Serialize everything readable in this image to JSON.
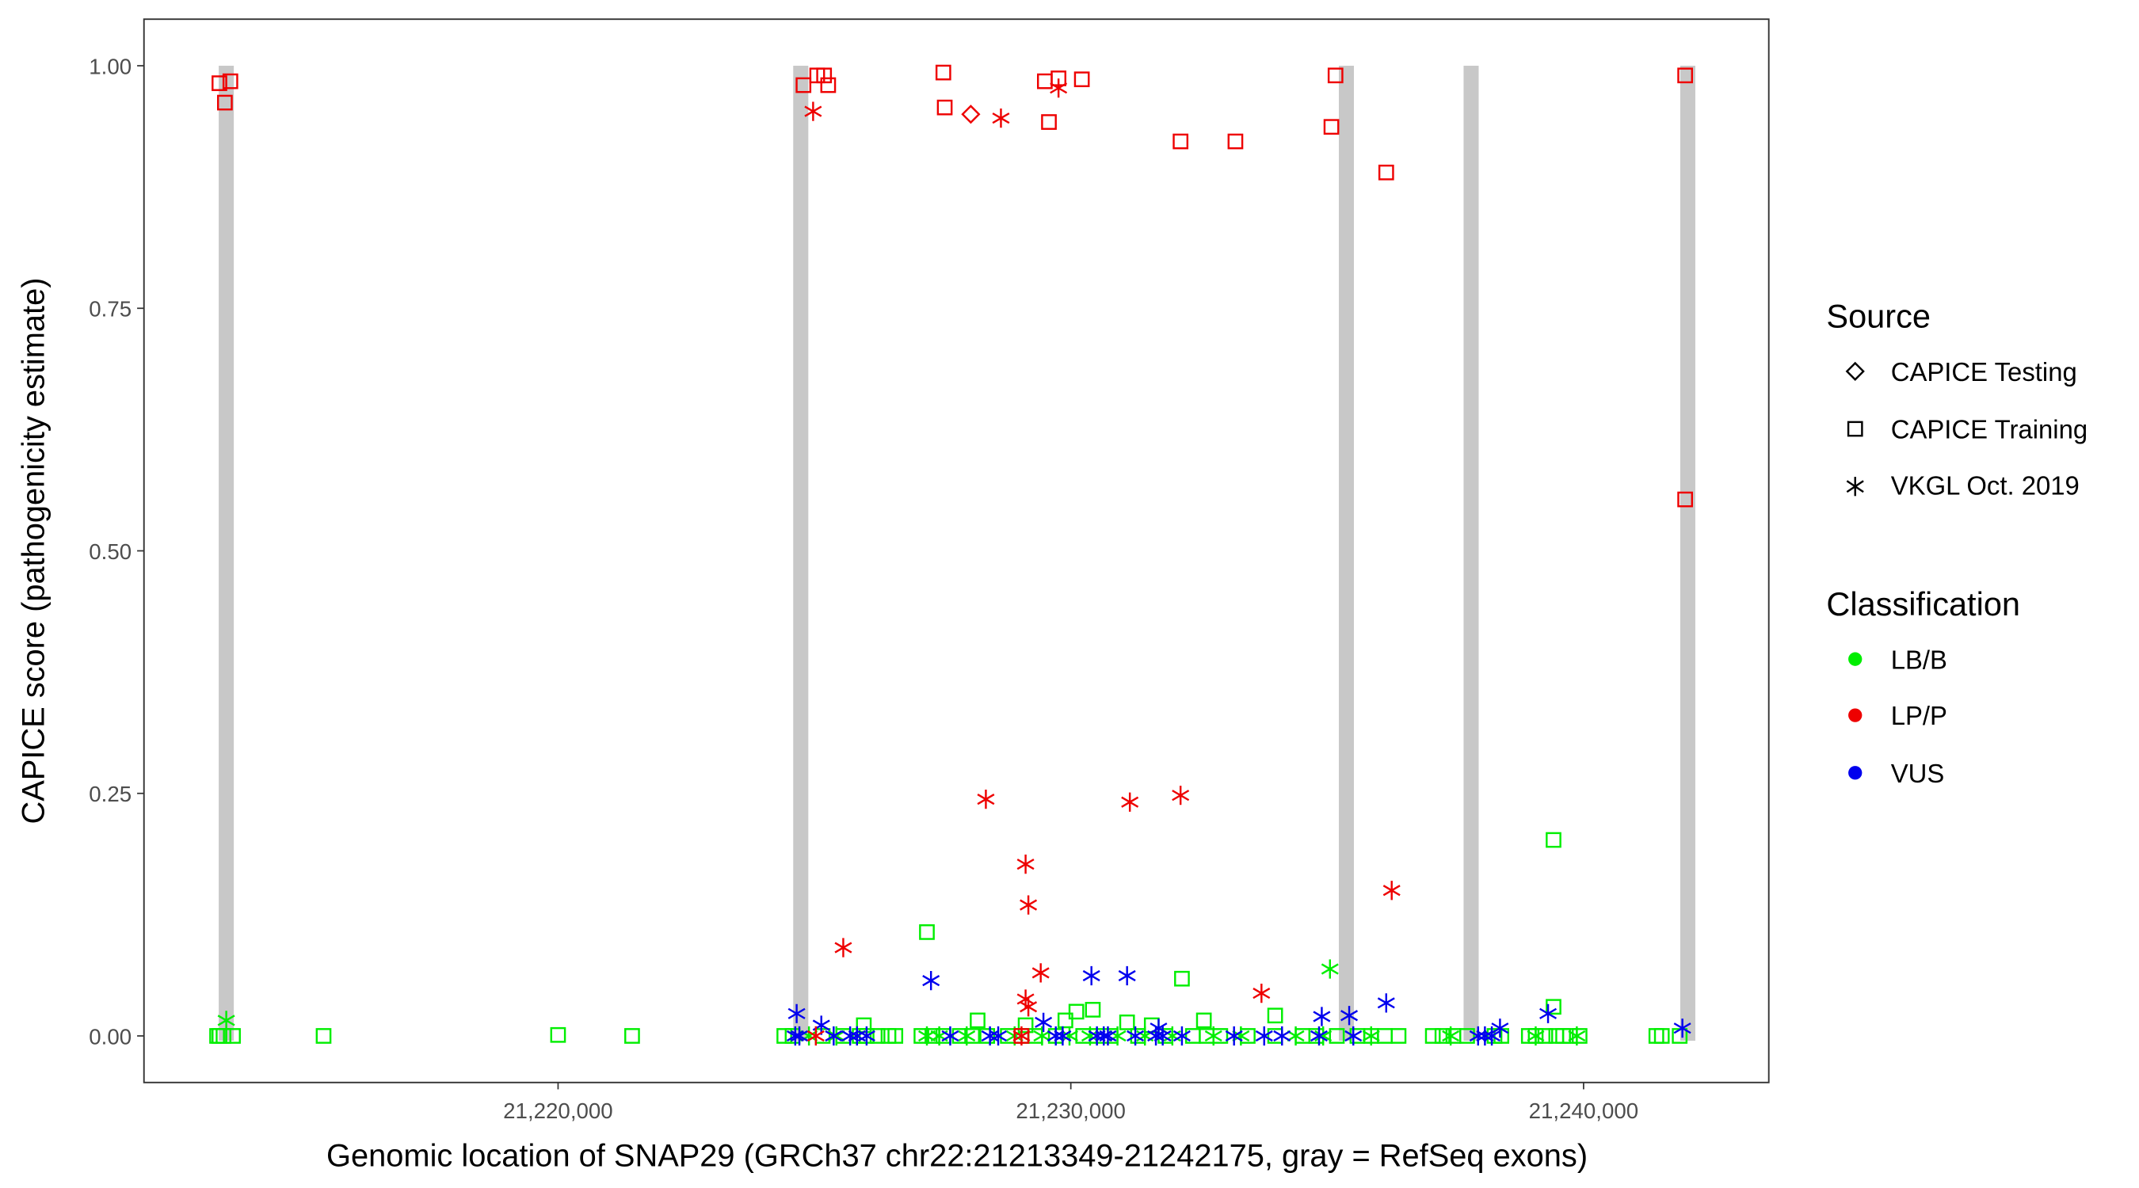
{
  "chart_data": {
    "type": "scatter",
    "title": "",
    "xlabel": "Genomic location of SNAP29 (GRCh37 chr22:21213349-21242175, gray = RefSeq exons)",
    "ylabel": "CAPICE score (pathogenicity estimate)",
    "xlim": [
      21211924,
      21243612
    ],
    "ylim": [
      -0.048,
      1.048
    ],
    "x_ticks": [
      21220000,
      21230000,
      21240000
    ],
    "x_tick_labels": [
      "21,220,000",
      "21,230,000",
      "21,240,000"
    ],
    "y_ticks": [
      0,
      0.25,
      0.5,
      0.75,
      1.0
    ],
    "y_tick_labels": [
      "0.00",
      "0.25",
      "0.50",
      "0.75",
      "1.00"
    ],
    "grid": false,
    "exons": [
      21213529,
      21224733,
      21235374,
      21237807,
      21242032
    ],
    "exon_color": "#c8c8c8",
    "legend_placement": "right",
    "legend": {
      "source_title": "Source",
      "source_items": [
        {
          "label": "CAPICE Testing",
          "shape": "diamond"
        },
        {
          "label": "CAPICE Training",
          "shape": "square"
        },
        {
          "label": "VKGL Oct. 2019",
          "shape": "asterisk"
        }
      ],
      "class_title": "Classification",
      "class_items": [
        {
          "label": "LB/B",
          "color": "#00ee00"
        },
        {
          "label": "LP/P",
          "color": "#ee0000"
        },
        {
          "label": "VUS",
          "color": "#0000ee"
        }
      ]
    },
    "series": [
      {
        "source": "CAPICE Training",
        "class": "LB/B",
        "shape": "square",
        "color": "#00ee00",
        "x": [
          21213350,
          21213395,
          21213475,
          21213660,
          21215427,
          21220000,
          21221444,
          21224412,
          21224573,
          21225161,
          21225562,
          21225883,
          21226017,
          21226230,
          21226444,
          21226578,
          21227086,
          21227300,
          21227514,
          21227835,
          21228075,
          21228370,
          21228771,
          21229038,
          21229306,
          21229707,
          21230241,
          21230509,
          21230776,
          21231311,
          21231846,
          21232381,
          21232648,
          21232915,
          21233450,
          21233985,
          21234520,
          21234787,
          21235188,
          21235589,
          21235857,
          21236124,
          21236392,
          21237060,
          21237247,
          21237461,
          21237729,
          21238263,
          21238397,
          21238932,
          21239066,
          21239253,
          21239467,
          21239601,
          21239735,
          21239922,
          21241419,
          21241526,
          21241874,
          21227193,
          21232167,
          21239414,
          21239414,
          21233985,
          21230429,
          21230108,
          21229894,
          21228182,
          21231097,
          21232595,
          21225963,
          21229118,
          21231578
        ],
        "y": [
          0,
          0,
          0,
          0,
          0,
          0.001,
          0,
          0,
          0,
          0,
          0,
          0,
          0,
          0,
          0,
          0,
          0,
          0,
          0,
          0,
          0,
          0,
          0,
          0,
          0,
          0,
          0,
          0,
          0,
          0,
          0,
          0,
          0,
          0,
          0,
          0,
          0,
          0,
          0,
          0,
          0,
          0,
          0,
          0,
          0,
          0,
          0,
          0,
          0,
          0,
          0,
          0,
          0,
          0,
          0,
          0,
          0,
          0,
          0,
          0.107,
          0.059,
          0.202,
          0.03,
          0.021,
          0.027,
          0.025,
          0.016,
          0.016,
          0.014,
          0.016,
          0.011,
          0.011,
          0.011
        ]
      },
      {
        "source": "VKGL Oct. 2019",
        "class": "LB/B",
        "shape": "asterisk",
        "color": "#00ee00",
        "x": [
          21213529,
          21235054,
          21224893,
          21225428,
          21227193,
          21227434,
          21227969,
          21228904,
          21229439,
          21229974,
          21230375,
          21230910,
          21231445,
          21231980,
          21232782,
          21233317,
          21234386,
          21234921,
          21235857,
          21237408,
          21239066,
          21239868
        ],
        "y": [
          0.016,
          0.069,
          0,
          0,
          0,
          0,
          0,
          0,
          0,
          0,
          0,
          0,
          0,
          0,
          0,
          0,
          0,
          0,
          0,
          0,
          0,
          0
        ]
      },
      {
        "source": "VKGL Oct. 2019",
        "class": "VUS",
        "shape": "asterisk",
        "color": "#0000ee",
        "x": [
          21227273,
          21230402,
          21231097,
          21236151,
          21239307,
          21224653,
          21225134,
          21234894,
          21235429,
          21241927,
          21229466,
          21238370,
          21231712,
          21224626,
          21224706,
          21225375,
          21225696,
          21225830,
          21226017,
          21227648,
          21228423,
          21228584,
          21229707,
          21229841,
          21230509,
          21230642,
          21230723,
          21231258,
          21231659,
          21231792,
          21232167,
          21233183,
          21233771,
          21234119,
          21234841,
          21235509,
          21237943,
          21238076,
          21238210
        ],
        "y": [
          0.057,
          0.062,
          0.062,
          0.034,
          0.023,
          0.023,
          0.011,
          0.02,
          0.021,
          0.008,
          0.014,
          0.008,
          0.008,
          0,
          0,
          0,
          0,
          0,
          0,
          0,
          0,
          0,
          0,
          0,
          0,
          0,
          0,
          0,
          0,
          0,
          0,
          0,
          0,
          0,
          0,
          0,
          0,
          0,
          0
        ]
      },
      {
        "source": "VKGL Oct. 2019",
        "class": "LP/P",
        "shape": "asterisk",
        "color": "#ee0000",
        "x": [
          21224974,
          21228637,
          21229760,
          21228343,
          21231151,
          21232140,
          21229118,
          21229172,
          21225562,
          21229413,
          21229118,
          21229172,
          21233718,
          21236258,
          21229038,
          21225027
        ],
        "y": [
          0.953,
          0.946,
          0.977,
          0.244,
          0.241,
          0.248,
          0.177,
          0.135,
          0.091,
          0.065,
          0.038,
          0.03,
          0.044,
          0.15,
          0,
          0
        ]
      },
      {
        "source": "CAPICE Training",
        "class": "LP/P",
        "shape": "square",
        "color": "#ee0000",
        "x": [
          21213395,
          21213502,
          21213609,
          21224786,
          21225054,
          21225188,
          21225268,
          21227514,
          21227541,
          21229493,
          21229573,
          21229760,
          21230215,
          21232140,
          21233210,
          21235082,
          21235162,
          21236151,
          21241981,
          21241981,
          21229038
        ],
        "y": [
          0.982,
          0.962,
          0.984,
          0.98,
          0.99,
          0.99,
          0.98,
          0.993,
          0.957,
          0.984,
          0.942,
          0.987,
          0.986,
          0.922,
          0.922,
          0.937,
          0.99,
          0.89,
          0.99,
          0.553,
          0
        ]
      },
      {
        "source": "CAPICE Testing",
        "class": "LP/P",
        "shape": "diamond",
        "color": "#ee0000",
        "x": [
          21228049
        ],
        "y": [
          0.95
        ]
      }
    ]
  }
}
